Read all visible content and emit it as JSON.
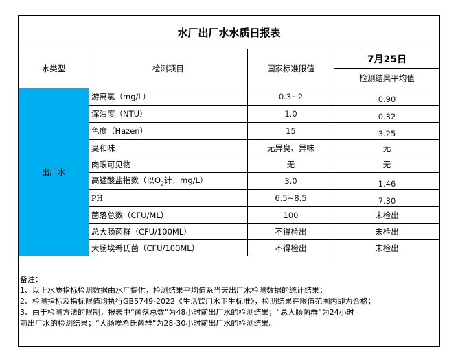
{
  "title": "水厂出厂水水质日报表",
  "header": {
    "water_type": "水类型",
    "item": "检测项目",
    "standard": "国家标准限值",
    "date": "7月25日",
    "result": "检测结果平均值"
  },
  "group_label": "出厂水",
  "colors": {
    "group_cell": "#00b0f0"
  },
  "rows": [
    {
      "item": "游离氯（mg/L）",
      "standard": "0.3~2",
      "result": "0.90"
    },
    {
      "item": "浑浊度（NTU）",
      "standard": "1.0",
      "result": "0.32"
    },
    {
      "item": "色度（Hazen）",
      "standard": "15",
      "result": "3.25"
    },
    {
      "item": "臭和味",
      "standard": "无异臭、异味",
      "result": "无"
    },
    {
      "item": "肉眼可见物",
      "standard": "无",
      "result": "无"
    },
    {
      "item_prefix": "高锰酸盐指数（以O",
      "item_sub": "2",
      "item_suffix": "计，mg/L）",
      "standard": "3.0",
      "result": "1.46"
    },
    {
      "item": "PH",
      "standard": "6.5~8.5",
      "result": "7.30"
    },
    {
      "item": "菌落总数（CFU/ML）",
      "standard": "100",
      "result": "未检出"
    },
    {
      "item": "总大肠菌群（CFU/100ML）",
      "standard": "不得检出",
      "result": "未检出"
    },
    {
      "item": "大肠埃希氏菌（CFU/100ML）",
      "standard": "不得检出",
      "result": "未检出"
    }
  ],
  "notes": {
    "heading": "备注：",
    "lines": [
      "1、以上水质指标检测数据由水厂提供，检测结果平均值系当天出厂水检测数据的统计结果；",
      "2、检测指标及指标限值均执行GB5749-2022《生活饮用水卫生标准》，检测结果在限值范围内即为合格；",
      "3、由于检测方法的限制，报表中“菌落总数”为48小时前出厂水的检测结果；“总大肠菌群”为24小时",
      "前出厂水的检测结果；“大肠埃希氏菌群”为28-30小时前出厂水的检测结果。"
    ]
  }
}
